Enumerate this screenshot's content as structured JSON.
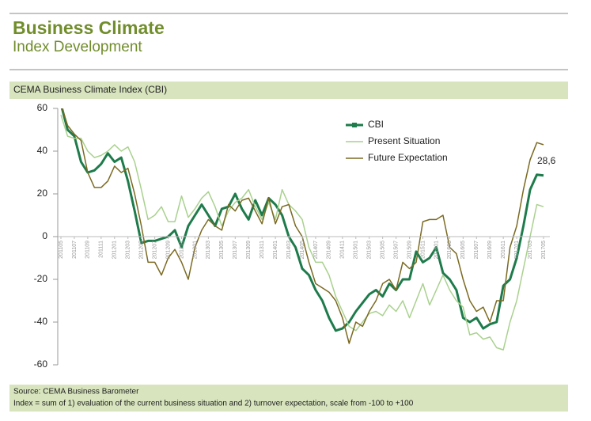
{
  "chart_data": {
    "type": "line",
    "title": "Business Climate",
    "subtitle": "Index Development",
    "panel_title": "CEMA Business Climate Index (CBI)",
    "source": "Source: CEMA Business Barometer",
    "note": "Index = sum of 1) evaluation of the current business situation and 2) turnover expectation, scale from -100 to +100",
    "categories": [
      "201105",
      null,
      "201107",
      null,
      "201109",
      null,
      "201111",
      null,
      "201201",
      null,
      "201203",
      null,
      "201205",
      null,
      "201207",
      null,
      "201209",
      null,
      "201211",
      null,
      "201301",
      null,
      "201303",
      null,
      "201305",
      null,
      "201307",
      null,
      "201309",
      null,
      "201311",
      null,
      "201401",
      null,
      "201403",
      null,
      "201405",
      null,
      "201407",
      null,
      "201409",
      null,
      "201411",
      null,
      "201501",
      null,
      "201503",
      null,
      "201505",
      null,
      "201507",
      null,
      "201509",
      null,
      "201511",
      null,
      "201601",
      null,
      "201603",
      null,
      "201605",
      null,
      "201607",
      null,
      "201609",
      null,
      "201611",
      null,
      "201701",
      null,
      "201703",
      null,
      "201705"
    ],
    "series": [
      {
        "name": "CBI",
        "color": "#1e7b4b",
        "width": 3,
        "values": [
          62,
          50,
          47,
          35,
          30,
          31,
          34,
          39,
          35,
          37,
          26,
          12,
          -3,
          -2,
          -2,
          -1,
          0,
          3,
          -5,
          5,
          10,
          15,
          10,
          5,
          13,
          14,
          20,
          13,
          8,
          17,
          10,
          18,
          15,
          10,
          0,
          -5,
          -15,
          -18,
          -25,
          -30,
          -38,
          -44,
          -43,
          -40,
          -35,
          -31,
          -27,
          -25,
          -28,
          -22,
          -25,
          -20,
          -20,
          -7,
          -12,
          -10,
          -5,
          -17,
          -20,
          -25,
          -38,
          -40,
          -38,
          -43,
          -41,
          -40,
          -23,
          -20,
          -10,
          5,
          22,
          29,
          28.6
        ],
        "value_labels": [
          null,
          null,
          null,
          null,
          null,
          null,
          null,
          null,
          null,
          null,
          null,
          null,
          null,
          null,
          null,
          null,
          null,
          null,
          null,
          null,
          null,
          null,
          null,
          null,
          null,
          null,
          null,
          null,
          null,
          null,
          null,
          null,
          null,
          null,
          null,
          null,
          null,
          null,
          null,
          null,
          null,
          null,
          null,
          null,
          null,
          null,
          null,
          null,
          null,
          null,
          null,
          null,
          null,
          null,
          null,
          null,
          null,
          null,
          null,
          null,
          null,
          null,
          null,
          null,
          null,
          null,
          null,
          null,
          null,
          null,
          null,
          null,
          "28,6"
        ]
      },
      {
        "name": "Present Situation",
        "color": "#a9d18e",
        "width": 1.5,
        "values": [
          57,
          47,
          46,
          46,
          40,
          37,
          38,
          40,
          43,
          40,
          42,
          35,
          22,
          8,
          10,
          14,
          7,
          7,
          19,
          9,
          13,
          18,
          21,
          14,
          5,
          12,
          16,
          18,
          22,
          14,
          8,
          16,
          8,
          22,
          15,
          12,
          8,
          -5,
          -12,
          -12,
          -18,
          -28,
          -35,
          -42,
          -44,
          -40,
          -36,
          -35,
          -37,
          -32,
          -35,
          -30,
          -38,
          -30,
          -22,
          -32,
          -25,
          -18,
          -25,
          -30,
          -33,
          -46,
          -45,
          -48,
          -47,
          -52,
          -53,
          -40,
          -30,
          -15,
          0,
          15,
          14
        ]
      },
      {
        "name": "Future Expectation",
        "color": "#7b6a22",
        "width": 1.5,
        "values": [
          62,
          52,
          48,
          45,
          30,
          23,
          23,
          26,
          33,
          30,
          32,
          20,
          5,
          -12,
          -12,
          -18,
          -10,
          -6,
          -12,
          -20,
          -5,
          3,
          8,
          5,
          3,
          15,
          12,
          17,
          18,
          12,
          6,
          18,
          6,
          14,
          15,
          5,
          0,
          -12,
          -22,
          -24,
          -26,
          -30,
          -38,
          -50,
          -40,
          -42,
          -35,
          -30,
          -22,
          -20,
          -25,
          -12,
          -15,
          -12,
          7,
          8,
          8,
          10,
          -5,
          -8,
          -20,
          -30,
          -35,
          -33,
          -40,
          -30,
          -30,
          -5,
          5,
          22,
          36,
          44,
          43
        ]
      }
    ],
    "ylim": [
      -60,
      60
    ],
    "yticks": [
      -60,
      -40,
      -20,
      0,
      20,
      40,
      60
    ],
    "grid": false,
    "legend": "top-right"
  }
}
